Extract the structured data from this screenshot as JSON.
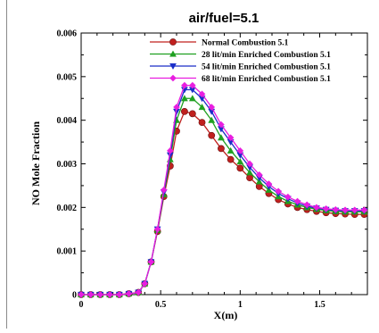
{
  "chart_data": {
    "type": "line",
    "title": "air/fuel=5.1",
    "xlabel": "X(m)",
    "ylabel": "NO  Mole Fraction",
    "xlim": [
      0,
      1.8
    ],
    "ylim": [
      0,
      0.006
    ],
    "xticks": [
      0,
      0.5,
      1,
      1.5
    ],
    "xtick_labels": [
      "0",
      "0.5",
      "1",
      "1.5"
    ],
    "yticks": [
      0,
      0.001,
      0.002,
      0.003,
      0.004,
      0.005,
      0.006
    ],
    "ytick_labels": [
      "0",
      "0.001",
      "0.002",
      "0.003",
      "0.004",
      "0.005",
      "0.006"
    ],
    "legend_position": "top-right",
    "grid": false,
    "series": [
      {
        "name": "Normal Combustion 5.1",
        "color": "#c0201e",
        "marker": "circle",
        "x": [
          0,
          0.06,
          0.12,
          0.18,
          0.24,
          0.3,
          0.36,
          0.4,
          0.44,
          0.48,
          0.52,
          0.56,
          0.6,
          0.65,
          0.7,
          0.76,
          0.82,
          0.88,
          0.94,
          1.0,
          1.06,
          1.12,
          1.18,
          1.24,
          1.3,
          1.36,
          1.42,
          1.48,
          1.54,
          1.6,
          1.66,
          1.72,
          1.78
        ],
        "y": [
          0,
          0,
          0,
          0,
          0,
          2e-05,
          5e-05,
          0.00025,
          0.00075,
          0.00145,
          0.00225,
          0.00295,
          0.00375,
          0.0042,
          0.00415,
          0.00395,
          0.00365,
          0.00335,
          0.0031,
          0.0029,
          0.00268,
          0.00248,
          0.00232,
          0.00218,
          0.00208,
          0.002,
          0.00195,
          0.00191,
          0.00188,
          0.00186,
          0.00185,
          0.00184,
          0.00184
        ]
      },
      {
        "name": "28 lit/min Enriched Combustion 5.1",
        "color": "#1fa020",
        "marker": "triangle-up",
        "x": [
          0,
          0.06,
          0.12,
          0.18,
          0.24,
          0.3,
          0.36,
          0.4,
          0.44,
          0.48,
          0.52,
          0.56,
          0.6,
          0.65,
          0.7,
          0.76,
          0.82,
          0.88,
          0.94,
          1.0,
          1.06,
          1.12,
          1.18,
          1.24,
          1.3,
          1.36,
          1.42,
          1.48,
          1.54,
          1.6,
          1.66,
          1.72,
          1.78
        ],
        "y": [
          0,
          0,
          0,
          0,
          0,
          2e-05,
          5e-05,
          0.00025,
          0.00075,
          0.00148,
          0.0023,
          0.0031,
          0.004,
          0.0045,
          0.0045,
          0.0043,
          0.004,
          0.0036,
          0.0033,
          0.00305,
          0.0028,
          0.00259,
          0.0024,
          0.00225,
          0.00214,
          0.00206,
          0.002,
          0.00196,
          0.00193,
          0.00191,
          0.0019,
          0.0019,
          0.0019
        ]
      },
      {
        "name": "54 lit/min Enriched Combustion 5.1",
        "color": "#1a2ec8",
        "marker": "triangle-down",
        "x": [
          0,
          0.06,
          0.12,
          0.18,
          0.24,
          0.3,
          0.36,
          0.4,
          0.44,
          0.48,
          0.52,
          0.56,
          0.6,
          0.65,
          0.7,
          0.76,
          0.82,
          0.88,
          0.94,
          1.0,
          1.06,
          1.12,
          1.18,
          1.24,
          1.3,
          1.36,
          1.42,
          1.48,
          1.54,
          1.6,
          1.66,
          1.72,
          1.78
        ],
        "y": [
          0,
          0,
          0,
          0,
          0,
          2e-05,
          5e-05,
          0.00025,
          0.00075,
          0.0015,
          0.00235,
          0.0032,
          0.0042,
          0.0047,
          0.0047,
          0.0045,
          0.0042,
          0.0038,
          0.0035,
          0.0032,
          0.00292,
          0.00268,
          0.00248,
          0.00232,
          0.0022,
          0.0021,
          0.00203,
          0.00198,
          0.00195,
          0.00193,
          0.00192,
          0.00192,
          0.00192
        ]
      },
      {
        "name": "68 lit/min Enriched Combustion 5.1",
        "color": "#e81ee0",
        "marker": "diamond",
        "x": [
          0,
          0.06,
          0.12,
          0.18,
          0.24,
          0.3,
          0.36,
          0.4,
          0.44,
          0.48,
          0.52,
          0.56,
          0.6,
          0.65,
          0.7,
          0.76,
          0.82,
          0.88,
          0.94,
          1.0,
          1.06,
          1.12,
          1.18,
          1.24,
          1.3,
          1.36,
          1.42,
          1.48,
          1.54,
          1.6,
          1.66,
          1.72,
          1.78
        ],
        "y": [
          0,
          0,
          0,
          0,
          0,
          2e-05,
          5e-05,
          0.00025,
          0.00075,
          0.0015,
          0.0024,
          0.0033,
          0.0043,
          0.0048,
          0.0048,
          0.0046,
          0.0043,
          0.0039,
          0.0036,
          0.0033,
          0.003,
          0.00275,
          0.00254,
          0.00237,
          0.00224,
          0.00214,
          0.00206,
          0.002,
          0.00197,
          0.00195,
          0.00194,
          0.00194,
          0.00194
        ]
      }
    ]
  }
}
